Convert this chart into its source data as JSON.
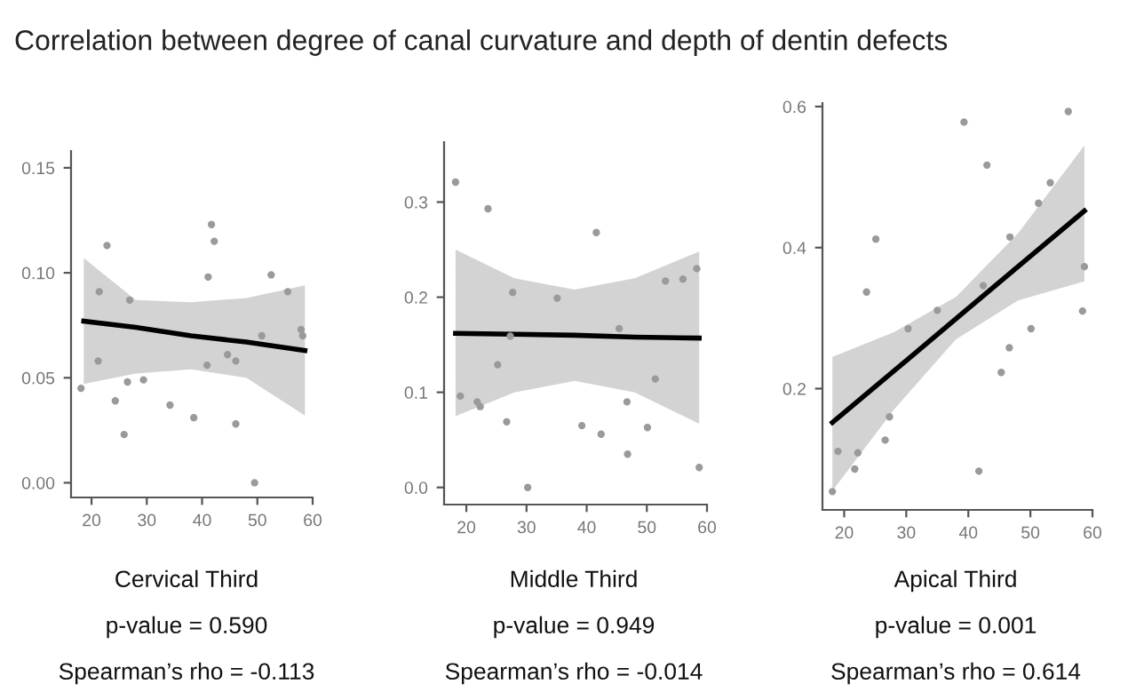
{
  "chart_data": [
    {
      "type": "scatter",
      "title": "Correlation between degree of canal curvature and depth of dentin defects",
      "annotations": [
        "Cervical Third",
        "p-value = 0.590",
        "Spearman’s rho = -0.113"
      ],
      "xlim": [
        16.3,
        60
      ],
      "ylim": [
        -0.007,
        0.158
      ],
      "xticks": [
        20,
        30,
        40,
        50,
        60
      ],
      "yticks": [
        {
          "value": 0,
          "label": "0.00"
        },
        {
          "value": 0.05,
          "label": "0.05"
        },
        {
          "value": 0.1,
          "label": "0.10"
        },
        {
          "value": 0.15,
          "label": "0.15"
        }
      ],
      "grid": false,
      "legend": false,
      "series": [
        {
          "type": "scatter",
          "color": "#9a9a9a",
          "marker": "circle",
          "x": [
            18.1,
            21.2,
            21.4,
            22.8,
            24.3,
            25.9,
            26.5,
            26.9,
            29.4,
            34.2,
            38.5,
            40.9,
            41.1,
            41.7,
            42.2,
            44.6,
            46.1,
            46.1,
            49.5,
            50.8,
            52.5,
            55.5,
            57.9,
            58.2
          ],
          "values": [
            0.045,
            0.058,
            0.091,
            0.113,
            0.039,
            0.023,
            0.048,
            0.087,
            0.049,
            0.037,
            0.031,
            0.056,
            0.098,
            0.123,
            0.115,
            0.061,
            0.058,
            0.028,
            0.0,
            0.07,
            0.099,
            0.091,
            0.073,
            0.07
          ]
        },
        {
          "type": "line",
          "color": "#000000",
          "line_style": "solid",
          "x": [
            18.6,
            28,
            38,
            48,
            58.6
          ],
          "values": [
            0.077,
            0.074,
            0.07,
            0.067,
            0.063
          ],
          "lower": [
            0.047,
            0.052,
            0.054,
            0.05,
            0.032
          ],
          "upper": [
            0.107,
            0.087,
            0.086,
            0.088,
            0.094
          ]
        }
      ]
    },
    {
      "type": "scatter",
      "annotations": [
        "Middle Third",
        "p-value = 0.949",
        "Spearman’s rho = -0.014"
      ],
      "xlim": [
        16.3,
        60
      ],
      "ylim": [
        -0.018,
        0.363
      ],
      "xticks": [
        20,
        30,
        40,
        50,
        60
      ],
      "yticks": [
        {
          "value": 0,
          "label": "0.0"
        },
        {
          "value": 0.1,
          "label": "0.1"
        },
        {
          "value": 0.2,
          "label": "0.2"
        },
        {
          "value": 0.3,
          "label": "0.3"
        }
      ],
      "grid": false,
      "legend": false,
      "series": [
        {
          "type": "scatter",
          "color": "#9a9a9a",
          "marker": "circle",
          "x": [
            18.2,
            19.0,
            21.8,
            22.3,
            23.6,
            25.2,
            26.7,
            27.3,
            27.7,
            30.2,
            35.1,
            39.2,
            41.6,
            42.4,
            45.4,
            46.7,
            46.8,
            50.1,
            51.4,
            53.1,
            56.0,
            58.3,
            58.7
          ],
          "values": [
            0.321,
            0.096,
            0.09,
            0.085,
            0.293,
            0.129,
            0.069,
            0.159,
            0.205,
            0.0,
            0.199,
            0.065,
            0.268,
            0.056,
            0.167,
            0.09,
            0.035,
            0.063,
            0.114,
            0.217,
            0.219,
            0.23,
            0.021
          ]
        },
        {
          "type": "line",
          "color": "#000000",
          "line_style": "solid",
          "x": [
            18.2,
            28,
            38,
            48,
            58.7
          ],
          "values": [
            0.162,
            0.161,
            0.16,
            0.158,
            0.157
          ],
          "lower": [
            0.075,
            0.1,
            0.112,
            0.1,
            0.067
          ],
          "upper": [
            0.25,
            0.22,
            0.208,
            0.22,
            0.248
          ]
        }
      ]
    },
    {
      "type": "scatter",
      "annotations": [
        "Apical Third",
        "p-value = 0.001",
        "Spearman’s rho = 0.614"
      ],
      "xlim": [
        16.5,
        60
      ],
      "ylim": [
        0.028,
        0.605
      ],
      "xticks": [
        20,
        30,
        40,
        50,
        60
      ],
      "yticks": [
        {
          "value": 0.2,
          "label": "0.2"
        },
        {
          "value": 0.4,
          "label": "0.4"
        },
        {
          "value": 0.6,
          "label": "0.6"
        }
      ],
      "grid": false,
      "legend": false,
      "series": [
        {
          "type": "scatter",
          "color": "#9a9a9a",
          "marker": "circle",
          "x": [
            18.1,
            19.0,
            21.7,
            22.2,
            23.6,
            25.1,
            26.6,
            27.3,
            30.3,
            35.0,
            39.3,
            41.7,
            42.4,
            43.0,
            45.3,
            46.6,
            46.7,
            50.1,
            51.3,
            53.2,
            56.1,
            58.4,
            58.7
          ],
          "values": [
            0.054,
            0.111,
            0.086,
            0.109,
            0.337,
            0.412,
            0.127,
            0.16,
            0.285,
            0.311,
            0.578,
            0.083,
            0.346,
            0.517,
            0.223,
            0.258,
            0.415,
            0.285,
            0.463,
            0.492,
            0.593,
            0.31,
            0.373
          ]
        },
        {
          "type": "line",
          "color": "#000000",
          "line_style": "solid",
          "x": [
            18.1,
            28,
            38,
            48,
            58.7
          ],
          "values": [
            0.152,
            0.225,
            0.299,
            0.373,
            0.452
          ],
          "lower": [
            0.055,
            0.17,
            0.27,
            0.325,
            0.352
          ],
          "upper": [
            0.245,
            0.28,
            0.33,
            0.42,
            0.545
          ]
        }
      ]
    }
  ]
}
